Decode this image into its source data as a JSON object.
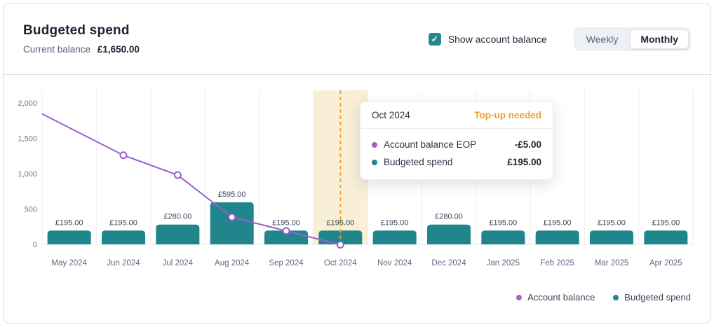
{
  "header": {
    "title": "Budgeted spend",
    "balance_label": "Current balance",
    "balance_value": "£1,650.00",
    "checkbox_label": "Show account balance",
    "checkbox_checked": true,
    "check_glyph": "✓",
    "toggle": {
      "options": [
        "Weekly",
        "Monthly"
      ],
      "selected": "Monthly"
    }
  },
  "tooltip": {
    "title": "Oct 2024",
    "status": "Top-up needed",
    "status_color": "#f0a030",
    "rows": [
      {
        "label": "Account balance EOP",
        "value": "-£5.00",
        "color": "#a55cc5"
      },
      {
        "label": "Budgeted spend",
        "value": "£195.00",
        "color": "#21858c"
      }
    ]
  },
  "legend": {
    "items": [
      {
        "label": "Account balance",
        "color": "#a763c8"
      },
      {
        "label": "Budgeted spend",
        "color": "#21858c"
      }
    ]
  },
  "chart_data": {
    "type": "bar+line",
    "categories": [
      "May 2024",
      "Jun 2024",
      "Jul 2024",
      "Aug 2024",
      "Sep 2024",
      "Oct 2024",
      "Nov 2024",
      "Dec 2024",
      "Jan 2025",
      "Feb 2025",
      "Mar 2025",
      "Apr 2025"
    ],
    "series": [
      {
        "name": "Budgeted spend",
        "type": "bar",
        "color": "#21858c",
        "values": [
          195,
          195,
          280,
          595,
          195,
          195,
          195,
          280,
          195,
          195,
          195,
          195
        ],
        "labels": [
          "£195.00",
          "£195.00",
          "£280.00",
          "£595.00",
          "£195.00",
          "£195.00",
          "£195.00",
          "£280.00",
          "£195.00",
          "£195.00",
          "£195.00",
          "£195.00"
        ]
      },
      {
        "name": "Account balance",
        "type": "line",
        "color": "#9d5fcc",
        "values": [
          1650,
          1260,
          980,
          385,
          190,
          -5,
          null,
          null,
          null,
          null,
          null,
          null
        ],
        "markers_from_index": 1,
        "extend_to_left_edge": true
      }
    ],
    "yticks": [
      0,
      500,
      1000,
      1500,
      2000
    ],
    "ytick_labels": [
      "0",
      "500",
      "1,000",
      "1,500",
      "2,000"
    ],
    "ylim": [
      0,
      2000
    ],
    "grid": "vertical",
    "highlight": {
      "category": "Oct 2024",
      "band_color": "#f9efd7",
      "dash_color": "#f0a030"
    },
    "legend_position": "bottom-right"
  }
}
